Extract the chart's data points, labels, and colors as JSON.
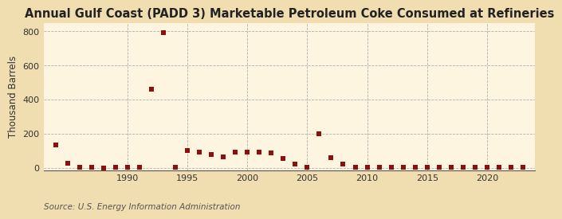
{
  "title": "Annual Gulf Coast (PADD 3) Marketable Petroleum Coke Consumed at Refineries",
  "ylabel": "Thousand Barrels",
  "source": "Source: U.S. Energy Information Administration",
  "background_color": "#f0deb0",
  "plot_background_color": "#fdf5e0",
  "marker_color": "#8b1010",
  "marker_size": 18,
  "ylim": [
    -15,
    850
  ],
  "yticks": [
    0,
    200,
    400,
    600,
    800
  ],
  "data": {
    "1984": 135,
    "1985": 30,
    "1986": 5,
    "1987": 3,
    "1988": 2,
    "1989": 4,
    "1990": 3,
    "1991": 3,
    "1992": 460,
    "1993": 790,
    "1994": 5,
    "1995": 100,
    "1996": 92,
    "1997": 78,
    "1998": 65,
    "1999": 93,
    "2000": 93,
    "2001": 95,
    "2002": 90,
    "2003": 55,
    "2004": 22,
    "2005": 5,
    "2006": 200,
    "2007": 60,
    "2008": 25,
    "2009": 4,
    "2010": 4,
    "2011": 4,
    "2012": 4,
    "2013": 4,
    "2014": 4,
    "2015": 4,
    "2016": 4,
    "2017": 4,
    "2018": 4,
    "2019": 4,
    "2020": 4,
    "2021": 4,
    "2022": 4,
    "2023": 4
  },
  "xticks": [
    1990,
    1995,
    2000,
    2005,
    2010,
    2015,
    2020
  ],
  "xlim": [
    1983,
    2024
  ],
  "title_fontsize": 10.5,
  "label_fontsize": 8.5,
  "tick_fontsize": 8,
  "source_fontsize": 7.5
}
